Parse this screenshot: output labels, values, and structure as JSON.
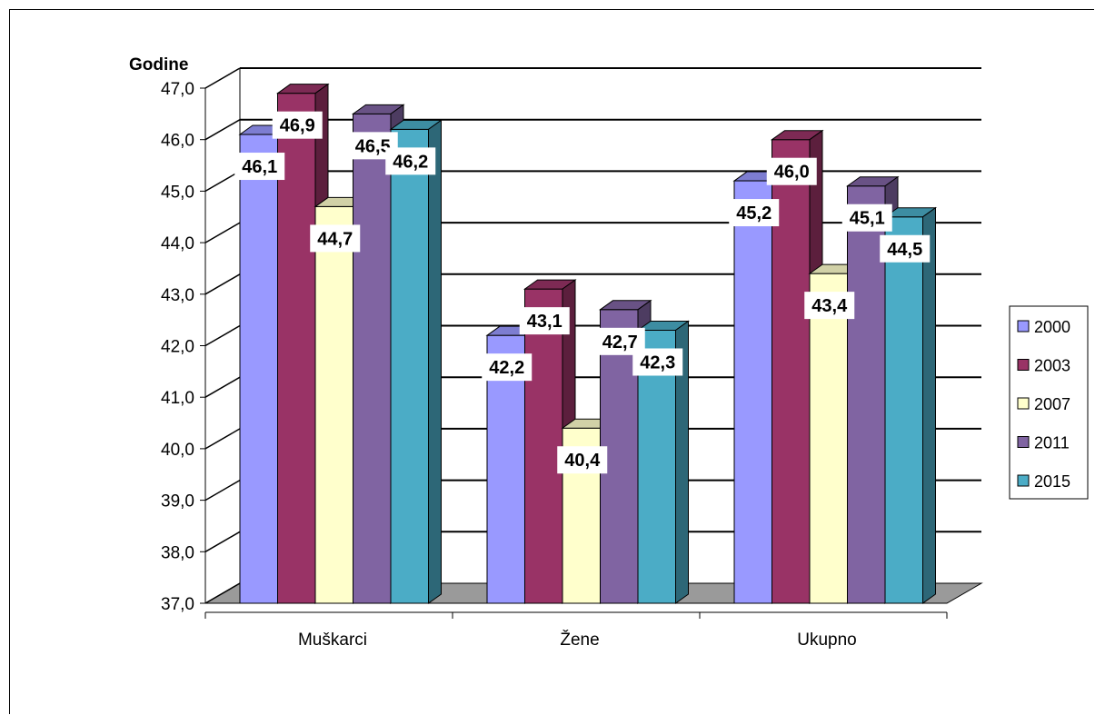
{
  "chart_data": {
    "type": "bar",
    "categories": [
      "Muškarci",
      "Žene",
      "Ukupno"
    ],
    "ylabel": "Godine",
    "ylim": [
      37,
      47
    ],
    "ytick_labels": [
      "37,0",
      "38,0",
      "39,0",
      "40,0",
      "41,0",
      "42,0",
      "43,0",
      "44,0",
      "45,0",
      "46,0",
      "47,0"
    ],
    "grid": true,
    "legend_position": "right",
    "series": [
      {
        "name": "2000",
        "color": "#9999ff",
        "values": [
          46.1,
          42.2,
          45.2
        ],
        "labels": [
          "46,1",
          "42,2",
          "45,2"
        ]
      },
      {
        "name": "2003",
        "color": "#993366",
        "values": [
          46.9,
          43.1,
          46.0
        ],
        "labels": [
          "46,9",
          "43,1",
          "46,0"
        ]
      },
      {
        "name": "2007",
        "color": "#ffffcc",
        "values": [
          44.7,
          40.4,
          43.4
        ],
        "labels": [
          "44,7",
          "40,4",
          "43,4"
        ]
      },
      {
        "name": "2011",
        "color": "#8064a2",
        "values": [
          46.5,
          42.7,
          45.1
        ],
        "labels": [
          "46,5",
          "42,7",
          "45,1"
        ]
      },
      {
        "name": "2015",
        "color": "#4bacc6",
        "values": [
          46.2,
          42.3,
          44.5
        ],
        "labels": [
          "46,2",
          "42,3",
          "44,5"
        ]
      }
    ]
  }
}
